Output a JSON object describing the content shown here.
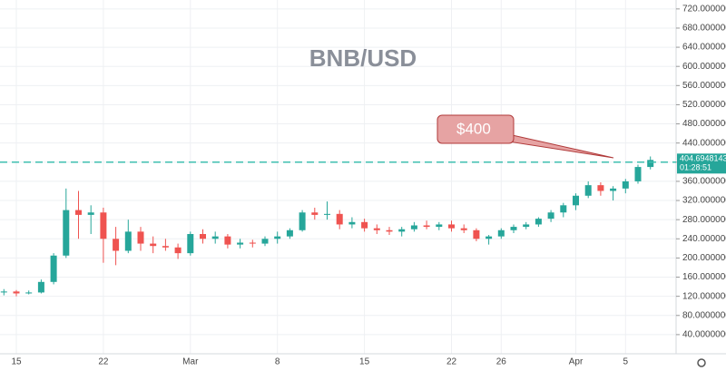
{
  "chart_data": {
    "type": "candlestick",
    "title": "BNB/USD",
    "annotation": "$400",
    "reference_line": 400,
    "last_price": 404.6948143,
    "countdown": "01:28:51",
    "up_color": "#26a69a",
    "down_color": "#ef5350",
    "grid": true,
    "categories": [
      null,
      "15",
      null,
      null,
      null,
      null,
      null,
      null,
      "22",
      null,
      null,
      null,
      null,
      null,
      null,
      "Mar",
      null,
      null,
      null,
      null,
      null,
      null,
      "8",
      null,
      null,
      null,
      null,
      null,
      null,
      "15",
      null,
      null,
      null,
      null,
      null,
      null,
      "22",
      null,
      null,
      null,
      "26",
      null,
      null,
      null,
      null,
      null,
      "Apr",
      null,
      null,
      null,
      "5",
      null,
      null
    ],
    "open": [
      128,
      130,
      126,
      128,
      150,
      205,
      300,
      290,
      295,
      240,
      215,
      255,
      230,
      225,
      222,
      210,
      250,
      240,
      245,
      228,
      232,
      230,
      240,
      245,
      258,
      295,
      290,
      292,
      270,
      275,
      262,
      258,
      255,
      260,
      268,
      265,
      270,
      262,
      258,
      240,
      245,
      258,
      265,
      270,
      282,
      295,
      310,
      330,
      352,
      340,
      345,
      360,
      390
    ],
    "high": [
      135,
      133,
      132,
      155,
      210,
      345,
      340,
      310,
      305,
      265,
      280,
      265,
      245,
      240,
      230,
      255,
      260,
      255,
      250,
      240,
      238,
      245,
      255,
      262,
      300,
      305,
      318,
      300,
      285,
      282,
      270,
      265,
      265,
      275,
      278,
      275,
      278,
      270,
      262,
      248,
      262,
      270,
      275,
      285,
      300,
      315,
      335,
      360,
      358,
      350,
      365,
      395,
      412
    ],
    "low": [
      122,
      120,
      124,
      126,
      145,
      200,
      240,
      250,
      190,
      185,
      210,
      215,
      210,
      215,
      198,
      205,
      230,
      230,
      220,
      220,
      222,
      225,
      230,
      240,
      255,
      280,
      280,
      260,
      262,
      255,
      250,
      248,
      245,
      255,
      260,
      258,
      255,
      252,
      235,
      228,
      240,
      252,
      260,
      265,
      275,
      285,
      300,
      325,
      330,
      320,
      335,
      355,
      385
    ],
    "close": [
      130,
      126,
      128,
      150,
      205,
      300,
      290,
      295,
      240,
      215,
      255,
      230,
      225,
      222,
      210,
      250,
      240,
      245,
      228,
      232,
      230,
      240,
      245,
      258,
      295,
      290,
      292,
      270,
      275,
      262,
      258,
      255,
      260,
      268,
      265,
      270,
      262,
      258,
      240,
      245,
      258,
      265,
      270,
      282,
      295,
      310,
      330,
      352,
      340,
      345,
      360,
      390,
      404.6948143
    ],
    "ylim": [
      0,
      740
    ],
    "yticks": [
      {
        "value": 40,
        "label": "40.0000000"
      },
      {
        "value": 80,
        "label": "80.0000000"
      },
      {
        "value": 120,
        "label": "120.0000000"
      },
      {
        "value": 160,
        "label": "160.0000000"
      },
      {
        "value": 200,
        "label": "200.0000000"
      },
      {
        "value": 240,
        "label": "240.0000000"
      },
      {
        "value": 280,
        "label": "280.0000000"
      },
      {
        "value": 320,
        "label": "320.0000000"
      },
      {
        "value": 360,
        "label": "360.0000000"
      },
      {
        "value": 400,
        "label": "400.0000000"
      },
      {
        "value": 440,
        "label": "440.0000000"
      },
      {
        "value": 480,
        "label": "480.0000000"
      },
      {
        "value": 520,
        "label": "520.0000000"
      },
      {
        "value": 560,
        "label": "560.0000000"
      },
      {
        "value": 600,
        "label": "600.0000000"
      },
      {
        "value": 640,
        "label": "640.0000000"
      },
      {
        "value": 680,
        "label": "680.0000000"
      },
      {
        "value": 720,
        "label": "720.0000000"
      }
    ]
  }
}
